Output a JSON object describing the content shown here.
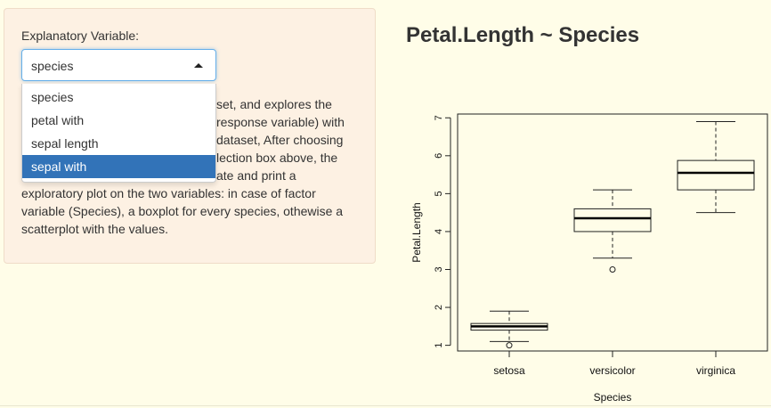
{
  "sidebar": {
    "label": "Explanatory Variable:",
    "selected": "species",
    "options": [
      "species",
      "petal with",
      "sepal length",
      "sepal with"
    ],
    "highlighted_option": "sepal with",
    "description_visible": "set, and explores the\nresponse variable) with\ndataset, After choosing\nlection box above, the\nate and print a\nexploratory plot on the two variables: in case of factor variable (Species), a boxplot for every species, othewise a scatterplot with the values."
  },
  "main": {
    "title": "Petal.Length ~ Species"
  },
  "colors": {
    "accent": "#3273b8",
    "panel": "#fdf1e3",
    "background": "#fffde8"
  },
  "chart_data": {
    "type": "boxplot",
    "title": "",
    "xlabel": "Species",
    "ylabel": "Petal.Length",
    "categories": [
      "setosa",
      "versicolor",
      "virginica"
    ],
    "ylim": [
      0.85,
      7.1
    ],
    "yticks": [
      "1",
      "2",
      "3",
      "4",
      "5",
      "6",
      "7"
    ],
    "boxes": [
      {
        "name": "setosa",
        "whisker_low": 1.1,
        "q1": 1.4,
        "median": 1.5,
        "q3": 1.575,
        "whisker_high": 1.9,
        "outliers": [
          1.0
        ]
      },
      {
        "name": "versicolor",
        "whisker_low": 3.3,
        "q1": 4.0,
        "median": 4.35,
        "q3": 4.6,
        "whisker_high": 5.1,
        "outliers": [
          3.0
        ]
      },
      {
        "name": "virginica",
        "whisker_low": 4.5,
        "q1": 5.1,
        "median": 5.55,
        "q3": 5.875,
        "whisker_high": 6.9,
        "outliers": []
      }
    ],
    "grid": false
  }
}
